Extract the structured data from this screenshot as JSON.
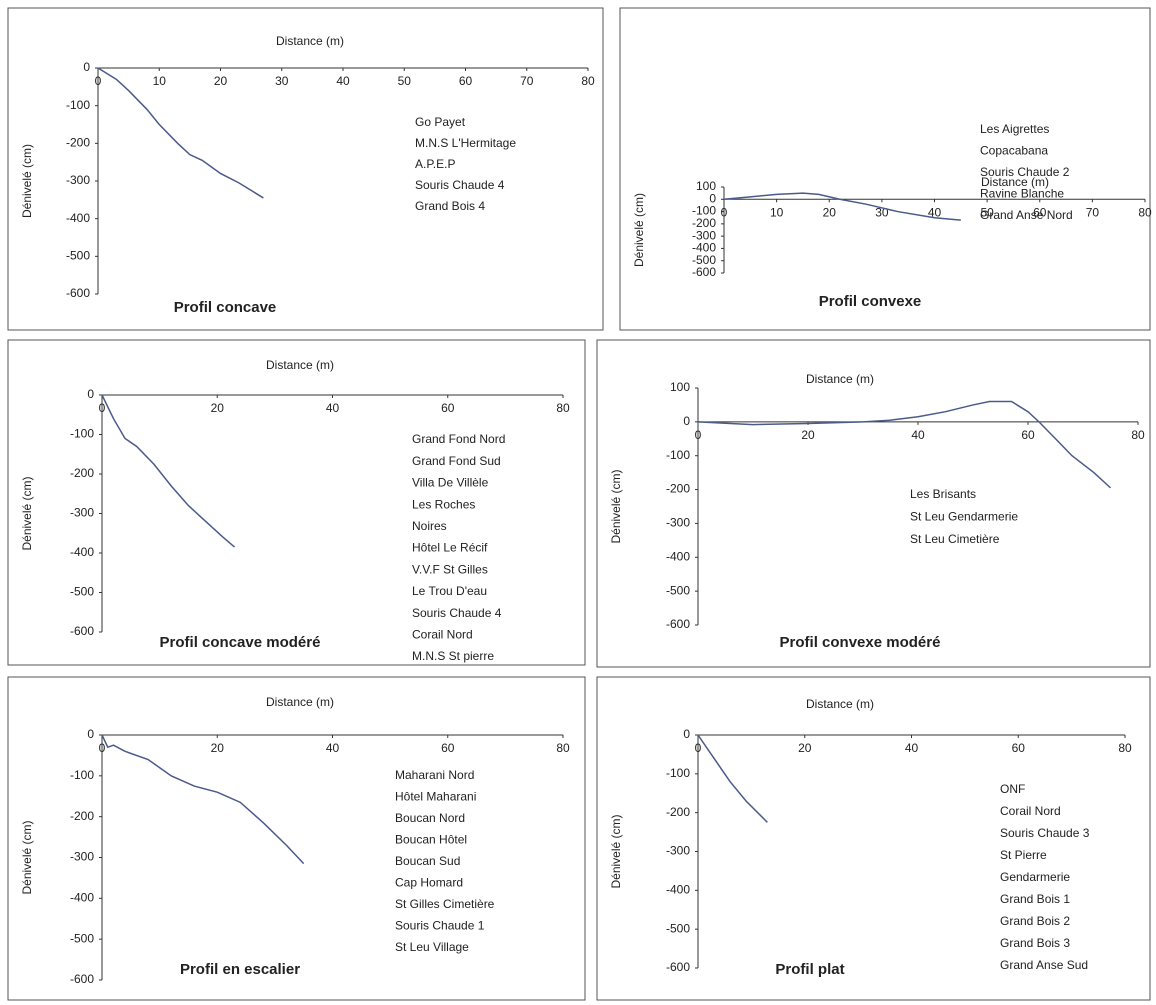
{
  "chart_data": [
    {
      "type": "line",
      "title": "Profil concave",
      "x_label": "Distance (m)",
      "y_label": "Dénivelé (cm)",
      "xlim": [
        0,
        80
      ],
      "xticks": [
        0,
        10,
        20,
        30,
        40,
        50,
        60,
        70,
        80
      ],
      "ylim": [
        -600,
        0
      ],
      "yticks": [
        0,
        -100,
        -200,
        -300,
        -400,
        -500,
        -600
      ],
      "series": [
        {
          "color": "#4a5a8a",
          "x": [
            0,
            3,
            5,
            8,
            10,
            13,
            15,
            17,
            20,
            23,
            27
          ],
          "values": [
            0,
            -30,
            -60,
            -110,
            -150,
            -200,
            -230,
            -245,
            -280,
            -305,
            -345
          ]
        }
      ],
      "sites": [
        "Go Payet",
        "M.N.S L'Hermitage",
        "A.P.E.P",
        "Souris Chaude 4",
        "Grand Bois 4"
      ]
    },
    {
      "type": "line",
      "title": "Profil convexe",
      "x_label": "Distance (m)",
      "y_label": "Dénivelé (cm)",
      "xlim": [
        0,
        80
      ],
      "xticks": [
        0,
        10,
        20,
        30,
        40,
        50,
        60,
        70,
        80
      ],
      "ylim": [
        -600,
        100
      ],
      "yticks": [
        100,
        0,
        -100,
        -200,
        -300,
        -400,
        -500,
        -600
      ],
      "series": [
        {
          "color": "#4a5a8a",
          "x": [
            0,
            5,
            10,
            15,
            18,
            22,
            27,
            33,
            40,
            45
          ],
          "values": [
            0,
            20,
            40,
            50,
            40,
            0,
            -40,
            -100,
            -150,
            -170
          ]
        }
      ],
      "sites": [
        "Les Aigrettes",
        "Copacabana",
        "Souris Chaude 2",
        "Ravine Blanche",
        "Grand Anse Nord"
      ]
    },
    {
      "type": "line",
      "title": "Profil concave modéré",
      "x_label": "Distance (m)",
      "y_label": "Dénivelé (cm)",
      "xlim": [
        0,
        80
      ],
      "xticks": [
        0,
        20,
        40,
        60,
        80
      ],
      "ylim": [
        -600,
        0
      ],
      "yticks": [
        0,
        -100,
        -200,
        -300,
        -400,
        -500,
        -600
      ],
      "series": [
        {
          "color": "#4a5a8a",
          "x": [
            0,
            2,
            4,
            6,
            9,
            12,
            15,
            18,
            21,
            23
          ],
          "values": [
            0,
            -60,
            -110,
            -130,
            -175,
            -230,
            -280,
            -320,
            -360,
            -385
          ]
        }
      ],
      "sites": [
        "Grand Fond Nord",
        "Grand Fond Sud",
        "Villa De Villèle",
        "Les Roches",
        "Noires",
        "Hôtel Le Récif",
        "V.V.F St Gilles",
        "Le Trou D'eau",
        "Souris Chaude 4",
        "Corail Nord",
        "M.N.S St pierre"
      ]
    },
    {
      "type": "line",
      "title": "Profil convexe modéré",
      "x_label": "Distance (m)",
      "y_label": "Dénivelé (cm)",
      "xlim": [
        0,
        80
      ],
      "xticks": [
        0,
        20,
        40,
        60,
        80
      ],
      "ylim": [
        -600,
        100
      ],
      "yticks": [
        100,
        0,
        -100,
        -200,
        -300,
        -400,
        -500,
        -600
      ],
      "series": [
        {
          "color": "#4a5a8a",
          "x": [
            0,
            10,
            20,
            30,
            35,
            40,
            45,
            50,
            53,
            57,
            60,
            62,
            65,
            68,
            72,
            75
          ],
          "values": [
            0,
            -8,
            -5,
            0,
            5,
            15,
            30,
            50,
            60,
            60,
            30,
            0,
            -50,
            -100,
            -150,
            -195
          ]
        }
      ],
      "sites": [
        "Les Brisants",
        "St Leu Gendarmerie",
        "St Leu Cimetière"
      ]
    },
    {
      "type": "line",
      "title": "Profil en escalier",
      "x_label": "Distance (m)",
      "y_label": "Dénivelé (cm)",
      "xlim": [
        0,
        80
      ],
      "xticks": [
        0,
        20,
        40,
        60,
        80
      ],
      "ylim": [
        -600,
        0
      ],
      "yticks": [
        0,
        -100,
        -200,
        -300,
        -400,
        -500,
        -600
      ],
      "series": [
        {
          "color": "#4a5a8a",
          "x": [
            0,
            1,
            2,
            4,
            8,
            12,
            16,
            20,
            24,
            28,
            32,
            35
          ],
          "values": [
            0,
            -30,
            -25,
            -40,
            -60,
            -100,
            -125,
            -140,
            -165,
            -215,
            -270,
            -315
          ]
        }
      ],
      "sites": [
        "Maharani Nord",
        "Hôtel Maharani",
        "Boucan Nord",
        "Boucan Hôtel",
        "Boucan Sud",
        "Cap Homard",
        "St Gilles Cimetière",
        "Souris Chaude 1",
        "St Leu Village"
      ]
    },
    {
      "type": "line",
      "title": "Profil plat",
      "x_label": "Distance (m)",
      "y_label": "Dénivelé (cm)",
      "xlim": [
        0,
        80
      ],
      "xticks": [
        0,
        20,
        40,
        60,
        80
      ],
      "ylim": [
        -600,
        0
      ],
      "yticks": [
        0,
        -100,
        -200,
        -300,
        -400,
        -500,
        -600
      ],
      "series": [
        {
          "color": "#4a5a8a",
          "x": [
            0,
            3,
            6,
            9,
            13
          ],
          "values": [
            0,
            -60,
            -120,
            -170,
            -225
          ]
        }
      ],
      "sites": [
        "ONF",
        "Corail Nord",
        "Souris Chaude 3",
        "St Pierre",
        "Gendarmerie",
        "Grand Bois 1",
        "Grand Bois 2",
        "Grand Bois 3",
        "Grand Anse Sud"
      ]
    }
  ]
}
